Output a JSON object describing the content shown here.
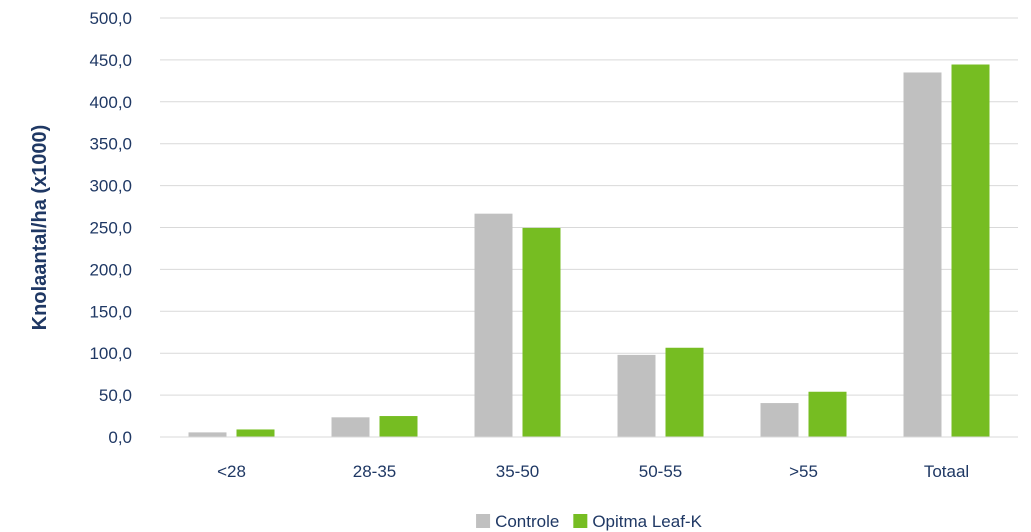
{
  "chart_data": {
    "type": "bar",
    "categories": [
      "<28",
      "28-35",
      "35-50",
      "50-55",
      ">55",
      "Totaal"
    ],
    "series": [
      {
        "name": "Controle",
        "color": "#c0c0c0",
        "values": [
          5.5,
          23.5,
          266.5,
          98.0,
          40.5,
          435.0
        ]
      },
      {
        "name": "Opitma Leaf-K",
        "color": "#76bd22",
        "values": [
          9.0,
          25.0,
          249.5,
          106.5,
          54.0,
          444.5
        ]
      }
    ],
    "title": "",
    "xlabel": "",
    "ylabel": "Knolaantal/ha (x1000)",
    "ylim": [
      0,
      500
    ],
    "yticks": [
      "0,0",
      "50,0",
      "100,0",
      "150,0",
      "200,0",
      "250,0",
      "300,0",
      "350,0",
      "400,0",
      "450,0",
      "500,0"
    ],
    "grid": true,
    "legend_position": "bottom"
  }
}
